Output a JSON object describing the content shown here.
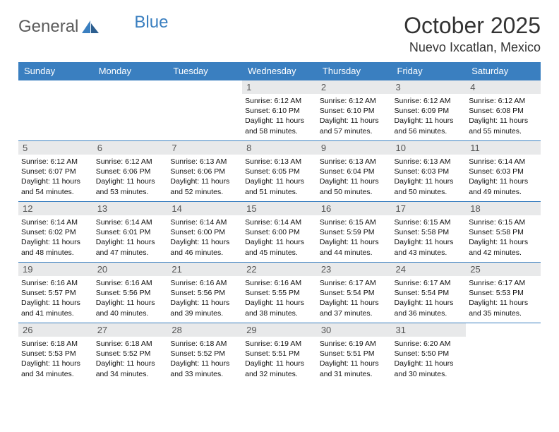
{
  "brand": {
    "text_gray": "General",
    "text_blue": "Blue",
    "gray_color": "#5b5b5b",
    "blue_color": "#3a7fc0"
  },
  "title": "October 2025",
  "location": "Nuevo Ixcatlan, Mexico",
  "colors": {
    "header_bg": "#3a7fc0",
    "daynum_bg": "#e8e9ea",
    "border": "#3a7fc0"
  },
  "day_headers": [
    "Sunday",
    "Monday",
    "Tuesday",
    "Wednesday",
    "Thursday",
    "Friday",
    "Saturday"
  ],
  "weeks": [
    [
      {},
      {},
      {},
      {
        "n": "1",
        "sunrise": "Sunrise: 6:12 AM",
        "sunset": "Sunset: 6:10 PM",
        "day1": "Daylight: 11 hours",
        "day2": "and 58 minutes."
      },
      {
        "n": "2",
        "sunrise": "Sunrise: 6:12 AM",
        "sunset": "Sunset: 6:10 PM",
        "day1": "Daylight: 11 hours",
        "day2": "and 57 minutes."
      },
      {
        "n": "3",
        "sunrise": "Sunrise: 6:12 AM",
        "sunset": "Sunset: 6:09 PM",
        "day1": "Daylight: 11 hours",
        "day2": "and 56 minutes."
      },
      {
        "n": "4",
        "sunrise": "Sunrise: 6:12 AM",
        "sunset": "Sunset: 6:08 PM",
        "day1": "Daylight: 11 hours",
        "day2": "and 55 minutes."
      }
    ],
    [
      {
        "n": "5",
        "sunrise": "Sunrise: 6:12 AM",
        "sunset": "Sunset: 6:07 PM",
        "day1": "Daylight: 11 hours",
        "day2": "and 54 minutes."
      },
      {
        "n": "6",
        "sunrise": "Sunrise: 6:12 AM",
        "sunset": "Sunset: 6:06 PM",
        "day1": "Daylight: 11 hours",
        "day2": "and 53 minutes."
      },
      {
        "n": "7",
        "sunrise": "Sunrise: 6:13 AM",
        "sunset": "Sunset: 6:06 PM",
        "day1": "Daylight: 11 hours",
        "day2": "and 52 minutes."
      },
      {
        "n": "8",
        "sunrise": "Sunrise: 6:13 AM",
        "sunset": "Sunset: 6:05 PM",
        "day1": "Daylight: 11 hours",
        "day2": "and 51 minutes."
      },
      {
        "n": "9",
        "sunrise": "Sunrise: 6:13 AM",
        "sunset": "Sunset: 6:04 PM",
        "day1": "Daylight: 11 hours",
        "day2": "and 50 minutes."
      },
      {
        "n": "10",
        "sunrise": "Sunrise: 6:13 AM",
        "sunset": "Sunset: 6:03 PM",
        "day1": "Daylight: 11 hours",
        "day2": "and 50 minutes."
      },
      {
        "n": "11",
        "sunrise": "Sunrise: 6:14 AM",
        "sunset": "Sunset: 6:03 PM",
        "day1": "Daylight: 11 hours",
        "day2": "and 49 minutes."
      }
    ],
    [
      {
        "n": "12",
        "sunrise": "Sunrise: 6:14 AM",
        "sunset": "Sunset: 6:02 PM",
        "day1": "Daylight: 11 hours",
        "day2": "and 48 minutes."
      },
      {
        "n": "13",
        "sunrise": "Sunrise: 6:14 AM",
        "sunset": "Sunset: 6:01 PM",
        "day1": "Daylight: 11 hours",
        "day2": "and 47 minutes."
      },
      {
        "n": "14",
        "sunrise": "Sunrise: 6:14 AM",
        "sunset": "Sunset: 6:00 PM",
        "day1": "Daylight: 11 hours",
        "day2": "and 46 minutes."
      },
      {
        "n": "15",
        "sunrise": "Sunrise: 6:14 AM",
        "sunset": "Sunset: 6:00 PM",
        "day1": "Daylight: 11 hours",
        "day2": "and 45 minutes."
      },
      {
        "n": "16",
        "sunrise": "Sunrise: 6:15 AM",
        "sunset": "Sunset: 5:59 PM",
        "day1": "Daylight: 11 hours",
        "day2": "and 44 minutes."
      },
      {
        "n": "17",
        "sunrise": "Sunrise: 6:15 AM",
        "sunset": "Sunset: 5:58 PM",
        "day1": "Daylight: 11 hours",
        "day2": "and 43 minutes."
      },
      {
        "n": "18",
        "sunrise": "Sunrise: 6:15 AM",
        "sunset": "Sunset: 5:58 PM",
        "day1": "Daylight: 11 hours",
        "day2": "and 42 minutes."
      }
    ],
    [
      {
        "n": "19",
        "sunrise": "Sunrise: 6:16 AM",
        "sunset": "Sunset: 5:57 PM",
        "day1": "Daylight: 11 hours",
        "day2": "and 41 minutes."
      },
      {
        "n": "20",
        "sunrise": "Sunrise: 6:16 AM",
        "sunset": "Sunset: 5:56 PM",
        "day1": "Daylight: 11 hours",
        "day2": "and 40 minutes."
      },
      {
        "n": "21",
        "sunrise": "Sunrise: 6:16 AM",
        "sunset": "Sunset: 5:56 PM",
        "day1": "Daylight: 11 hours",
        "day2": "and 39 minutes."
      },
      {
        "n": "22",
        "sunrise": "Sunrise: 6:16 AM",
        "sunset": "Sunset: 5:55 PM",
        "day1": "Daylight: 11 hours",
        "day2": "and 38 minutes."
      },
      {
        "n": "23",
        "sunrise": "Sunrise: 6:17 AM",
        "sunset": "Sunset: 5:54 PM",
        "day1": "Daylight: 11 hours",
        "day2": "and 37 minutes."
      },
      {
        "n": "24",
        "sunrise": "Sunrise: 6:17 AM",
        "sunset": "Sunset: 5:54 PM",
        "day1": "Daylight: 11 hours",
        "day2": "and 36 minutes."
      },
      {
        "n": "25",
        "sunrise": "Sunrise: 6:17 AM",
        "sunset": "Sunset: 5:53 PM",
        "day1": "Daylight: 11 hours",
        "day2": "and 35 minutes."
      }
    ],
    [
      {
        "n": "26",
        "sunrise": "Sunrise: 6:18 AM",
        "sunset": "Sunset: 5:53 PM",
        "day1": "Daylight: 11 hours",
        "day2": "and 34 minutes."
      },
      {
        "n": "27",
        "sunrise": "Sunrise: 6:18 AM",
        "sunset": "Sunset: 5:52 PM",
        "day1": "Daylight: 11 hours",
        "day2": "and 34 minutes."
      },
      {
        "n": "28",
        "sunrise": "Sunrise: 6:18 AM",
        "sunset": "Sunset: 5:52 PM",
        "day1": "Daylight: 11 hours",
        "day2": "and 33 minutes."
      },
      {
        "n": "29",
        "sunrise": "Sunrise: 6:19 AM",
        "sunset": "Sunset: 5:51 PM",
        "day1": "Daylight: 11 hours",
        "day2": "and 32 minutes."
      },
      {
        "n": "30",
        "sunrise": "Sunrise: 6:19 AM",
        "sunset": "Sunset: 5:51 PM",
        "day1": "Daylight: 11 hours",
        "day2": "and 31 minutes."
      },
      {
        "n": "31",
        "sunrise": "Sunrise: 6:20 AM",
        "sunset": "Sunset: 5:50 PM",
        "day1": "Daylight: 11 hours",
        "day2": "and 30 minutes."
      },
      {}
    ]
  ]
}
